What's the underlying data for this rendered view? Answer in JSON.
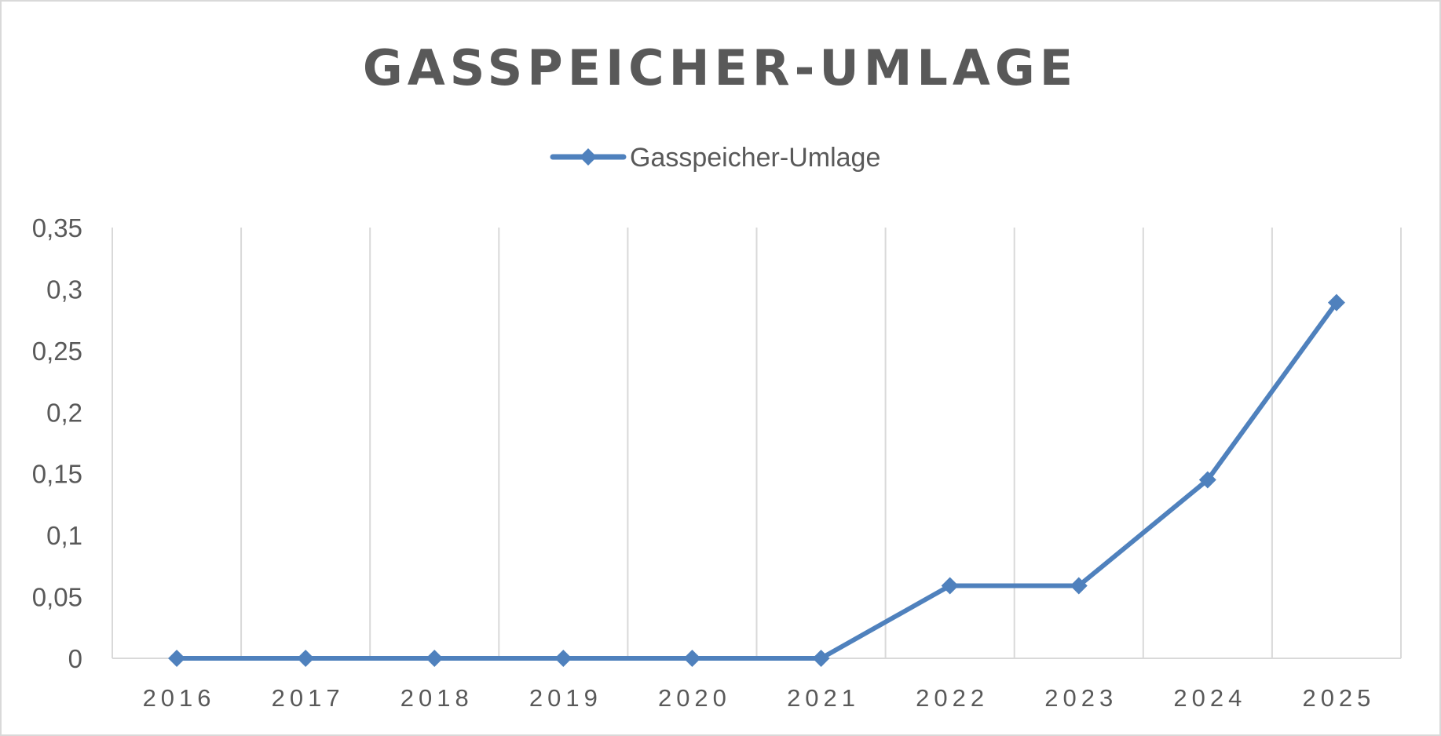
{
  "chart_data": {
    "type": "line",
    "title": "GASSPEICHER-UMLAGE",
    "xlabel": "",
    "ylabel": "",
    "categories": [
      "2016",
      "2017",
      "2018",
      "2019",
      "2020",
      "2021",
      "2022",
      "2023",
      "2024",
      "2025"
    ],
    "series": [
      {
        "name": "Gasspeicher-Umlage",
        "values": [
          0,
          0,
          0,
          0,
          0,
          0,
          0.059,
          0.059,
          0.145,
          0.289
        ],
        "color": "#4f81bd",
        "marker": "diamond"
      }
    ],
    "ylim": [
      0,
      0.35
    ],
    "yticks": [
      0,
      0.05,
      0.1,
      0.15,
      0.2,
      0.25,
      0.3,
      0.35
    ],
    "ytick_labels": [
      "0",
      "0,05",
      "0,1",
      "0,15",
      "0,2",
      "0,25",
      "0,3",
      "0,35"
    ],
    "grid": "vertical",
    "legend": "top-center",
    "colors": {
      "text": "#595959",
      "grid": "#d9d9d9",
      "axis": "#d9d9d9"
    }
  }
}
